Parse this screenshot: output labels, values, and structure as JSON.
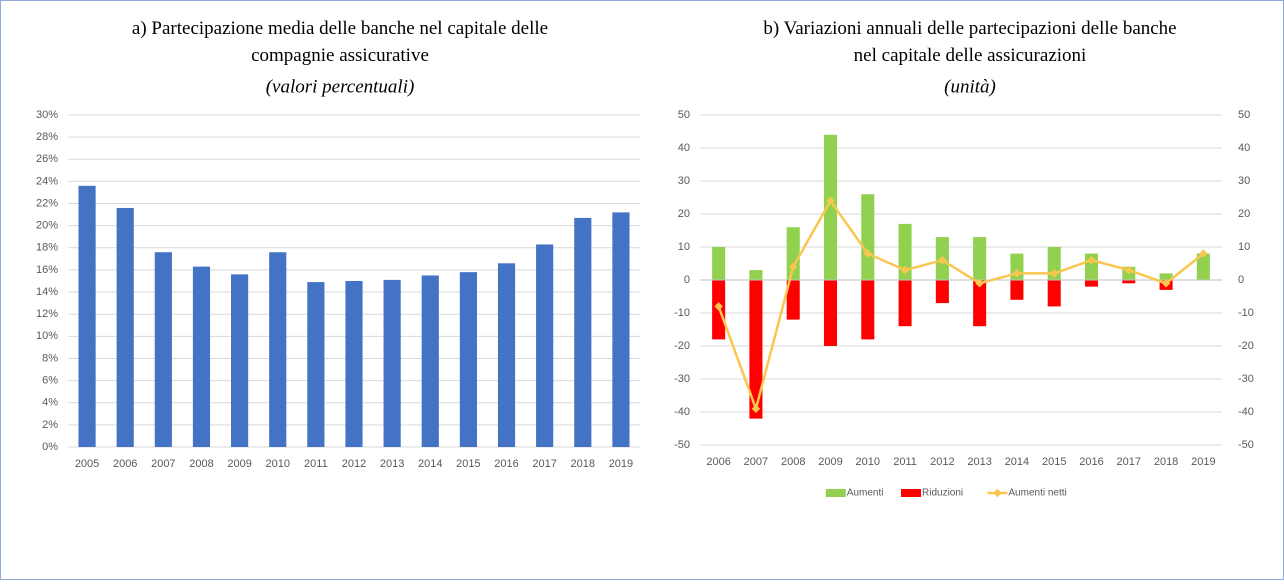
{
  "chart_data": [
    {
      "type": "bar",
      "title": "a) Partecipazione media delle banche nel capitale delle compagnie assicurative",
      "subtitle": "(valori percentuali)",
      "categories": [
        "2005",
        "2006",
        "2007",
        "2008",
        "2009",
        "2010",
        "2011",
        "2012",
        "2013",
        "2014",
        "2015",
        "2016",
        "2017",
        "2018",
        "2019"
      ],
      "values": [
        23.6,
        21.6,
        17.6,
        16.3,
        15.6,
        17.6,
        14.9,
        15.0,
        15.1,
        15.5,
        15.8,
        16.6,
        18.3,
        20.7,
        21.2
      ],
      "color": "#4472c4",
      "ylim": [
        0,
        30
      ],
      "yticks": [
        {
          "value": 0,
          "label": "0%"
        },
        {
          "value": 2,
          "label": "2%"
        },
        {
          "value": 4,
          "label": "4%"
        },
        {
          "value": 6,
          "label": "6%"
        },
        {
          "value": 8,
          "label": "8%"
        },
        {
          "value": 10,
          "label": "10%"
        },
        {
          "value": 12,
          "label": "12%"
        },
        {
          "value": 14,
          "label": "14%"
        },
        {
          "value": 16,
          "label": "16%"
        },
        {
          "value": 18,
          "label": "18%"
        },
        {
          "value": 20,
          "label": "20%"
        },
        {
          "value": 22,
          "label": "22%"
        },
        {
          "value": 24,
          "label": "24%"
        },
        {
          "value": 26,
          "label": "26%"
        },
        {
          "value": 28,
          "label": "28%"
        },
        {
          "value": 30,
          "label": "30%"
        }
      ],
      "grid": true
    },
    {
      "type": "combo",
      "title": "b) Variazioni annuali delle partecipazioni delle banche nel capitale delle assicurazioni",
      "subtitle": "(unità)",
      "categories": [
        "2006",
        "2007",
        "2008",
        "2009",
        "2010",
        "2011",
        "2012",
        "2013",
        "2014",
        "2015",
        "2016",
        "2017",
        "2018",
        "2019"
      ],
      "series": [
        {
          "name": "Aumenti",
          "color": "#92d050",
          "kind": "bar",
          "values": [
            10,
            3,
            16,
            44,
            26,
            17,
            13,
            13,
            8,
            10,
            8,
            4,
            2,
            8
          ]
        },
        {
          "name": "Riduzioni",
          "color": "#ff0000",
          "kind": "bar",
          "values": [
            -18,
            -42,
            -12,
            -20,
            -18,
            -14,
            -7,
            -14,
            -6,
            -8,
            -2,
            -1,
            -3,
            0
          ]
        },
        {
          "name": "Aumenti netti",
          "color": "#f9c74f",
          "kind": "line",
          "values": [
            -8,
            -39,
            4,
            24,
            8,
            3,
            6,
            -1,
            2,
            2,
            6,
            3,
            -1,
            8
          ]
        }
      ],
      "ylim": [
        -50,
        50
      ],
      "yticks": [
        -50,
        -40,
        -30,
        -20,
        -10,
        0,
        10,
        20,
        30,
        40,
        50
      ],
      "y2lim": [
        -50,
        50
      ],
      "y2ticks": [
        -50,
        -40,
        -30,
        -20,
        -10,
        0,
        10,
        20,
        30,
        40,
        50
      ],
      "grid": true,
      "legend": "bottom"
    }
  ]
}
